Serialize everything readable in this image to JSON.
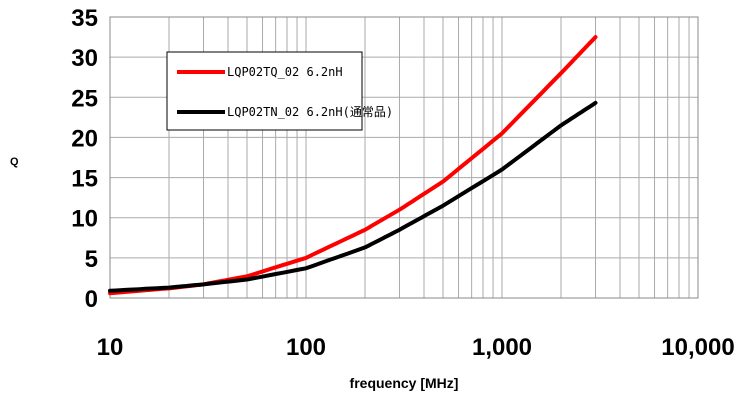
{
  "chart_data": {
    "type": "line",
    "title": "",
    "xlabel": "frequency [MHz]",
    "ylabel": "Q",
    "xscale": "log",
    "xlim": [
      10,
      10000
    ],
    "ylim": [
      0,
      35
    ],
    "x_ticks": [
      "10",
      "100",
      "1,000",
      "10,000"
    ],
    "y_ticks": [
      "0",
      "5",
      "10",
      "15",
      "20",
      "25",
      "30",
      "35"
    ],
    "grid": true,
    "legend_position": "top-left",
    "series": [
      {
        "name": "LQP02TQ_02 6.2nH",
        "color": "#ff0000",
        "x": [
          10,
          20,
          30,
          50,
          100,
          200,
          300,
          500,
          1000,
          2000,
          3000
        ],
        "y": [
          0.6,
          1.2,
          1.7,
          2.7,
          5.0,
          8.5,
          11.0,
          14.5,
          20.5,
          28.0,
          32.5
        ]
      },
      {
        "name": "LQP02TN_02 6.2nH(通常品)",
        "color": "#000000",
        "x": [
          10,
          20,
          30,
          50,
          100,
          200,
          300,
          500,
          1000,
          2000,
          3000
        ],
        "y": [
          0.9,
          1.3,
          1.7,
          2.3,
          3.7,
          6.3,
          8.5,
          11.5,
          16.0,
          21.5,
          24.3
        ]
      }
    ]
  }
}
